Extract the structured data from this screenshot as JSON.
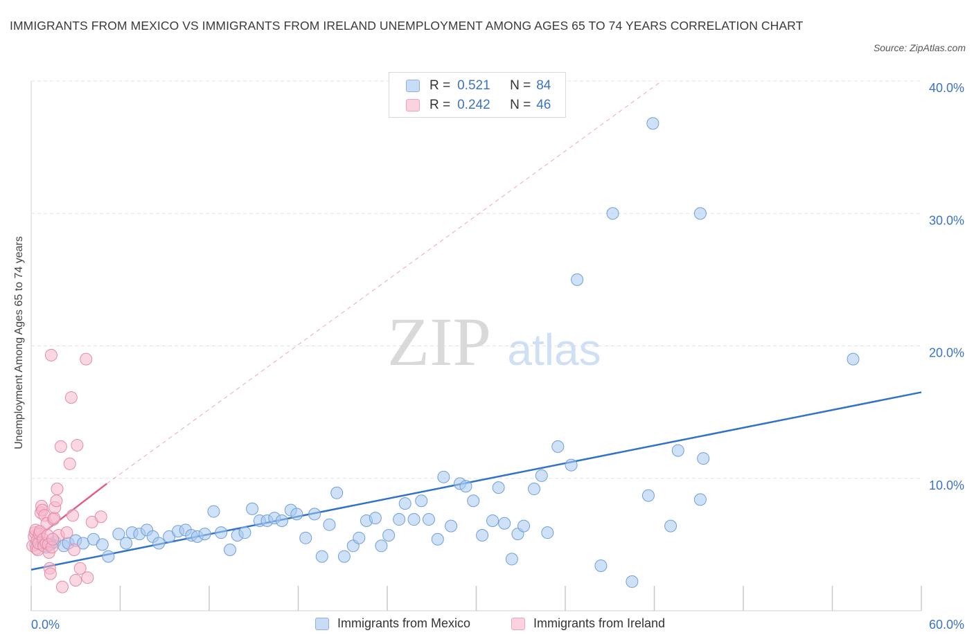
{
  "title": "IMMIGRANTS FROM MEXICO VS IMMIGRANTS FROM IRELAND UNEMPLOYMENT AMONG AGES 65 TO 74 YEARS CORRELATION CHART",
  "source": "Source: ZipAtlas.com",
  "watermark": {
    "zip": "ZIP",
    "atlas": "atlas"
  },
  "legend_stats": [
    {
      "r_label": "R =",
      "r_value": "0.521",
      "n_label": "N =",
      "n_value": "84",
      "color": "#a8c8f0"
    },
    {
      "r_label": "R =",
      "r_value": "0.242",
      "n_label": "N =",
      "n_value": "46",
      "color": "#f5b8cc"
    }
  ],
  "colors": {
    "mexico_fill": "#a8c8f0",
    "mexico_stroke": "#6f9fd8",
    "mexico_line": "#2f72c8",
    "ireland_fill": "#f5b8cc",
    "ireland_stroke": "#e58aa6",
    "ireland_line": "#e0608a",
    "axis_text": "#3a72c8",
    "grid": "#e3e3e3"
  },
  "chart_data": {
    "type": "scatter",
    "title": "IMMIGRANTS FROM MEXICO VS IMMIGRANTS FROM IRELAND UNEMPLOYMENT AMONG AGES 65 TO 74 YEARS CORRELATION CHART",
    "xlabel": "",
    "ylabel": "Unemployment Among Ages 65 to 74 years",
    "xlim": [
      0,
      60
    ],
    "ylim": [
      0,
      40
    ],
    "x_tick_labels": [
      {
        "value": 0,
        "label": "0.0%"
      },
      {
        "value": 60,
        "label": "60.0%"
      }
    ],
    "y_tick_labels": [
      {
        "value": 10,
        "label": "10.0%"
      },
      {
        "value": 20,
        "label": "20.0%"
      },
      {
        "value": 30,
        "label": "30.0%"
      },
      {
        "value": 40,
        "label": "40.0%"
      }
    ],
    "grid": true,
    "legend_position": "bottom",
    "series": [
      {
        "name": "Immigrants from Mexico",
        "color": "#a8c8f0",
        "points": [
          [
            0.3,
            5.0
          ],
          [
            0.5,
            5.3
          ],
          [
            0.7,
            5.0
          ],
          [
            1.0,
            4.8
          ],
          [
            1.3,
            5.0
          ],
          [
            1.6,
            5.2
          ],
          [
            2.2,
            4.9
          ],
          [
            2.5,
            5.1
          ],
          [
            3.0,
            5.3
          ],
          [
            3.5,
            5.1
          ],
          [
            4.2,
            5.4
          ],
          [
            4.8,
            5.0
          ],
          [
            5.2,
            4.1
          ],
          [
            5.9,
            5.8
          ],
          [
            6.4,
            5.1
          ],
          [
            6.8,
            5.9
          ],
          [
            7.3,
            5.8
          ],
          [
            7.8,
            6.1
          ],
          [
            8.2,
            5.6
          ],
          [
            8.6,
            5.1
          ],
          [
            9.3,
            5.6
          ],
          [
            9.9,
            6.0
          ],
          [
            10.4,
            6.1
          ],
          [
            10.8,
            5.7
          ],
          [
            11.2,
            5.6
          ],
          [
            11.7,
            5.8
          ],
          [
            12.3,
            7.5
          ],
          [
            12.8,
            5.9
          ],
          [
            13.4,
            4.6
          ],
          [
            13.9,
            5.7
          ],
          [
            14.4,
            5.9
          ],
          [
            14.9,
            7.7
          ],
          [
            15.4,
            6.8
          ],
          [
            15.9,
            6.8
          ],
          [
            16.4,
            7.0
          ],
          [
            16.9,
            6.8
          ],
          [
            17.5,
            7.6
          ],
          [
            17.9,
            7.3
          ],
          [
            18.5,
            5.5
          ],
          [
            19.1,
            7.3
          ],
          [
            19.6,
            4.1
          ],
          [
            20.1,
            6.5
          ],
          [
            20.6,
            8.9
          ],
          [
            21.1,
            4.1
          ],
          [
            21.7,
            4.9
          ],
          [
            22.1,
            5.5
          ],
          [
            22.6,
            6.8
          ],
          [
            23.2,
            7.0
          ],
          [
            23.6,
            4.9
          ],
          [
            24.1,
            5.7
          ],
          [
            24.8,
            6.9
          ],
          [
            25.2,
            8.1
          ],
          [
            25.8,
            6.9
          ],
          [
            26.3,
            8.3
          ],
          [
            26.8,
            6.9
          ],
          [
            27.4,
            5.4
          ],
          [
            27.8,
            10.1
          ],
          [
            28.3,
            6.4
          ],
          [
            28.9,
            9.6
          ],
          [
            29.3,
            9.4
          ],
          [
            29.8,
            8.3
          ],
          [
            30.4,
            5.7
          ],
          [
            31.1,
            6.8
          ],
          [
            31.5,
            9.3
          ],
          [
            31.9,
            6.6
          ],
          [
            32.4,
            3.9
          ],
          [
            32.8,
            5.8
          ],
          [
            33.2,
            6.4
          ],
          [
            33.9,
            9.2
          ],
          [
            34.4,
            10.2
          ],
          [
            34.8,
            5.9
          ],
          [
            35.5,
            12.4
          ],
          [
            36.4,
            11.0
          ],
          [
            36.8,
            25.0
          ],
          [
            38.4,
            3.4
          ],
          [
            39.2,
            30.0
          ],
          [
            41.9,
            36.8
          ],
          [
            40.5,
            2.2
          ],
          [
            41.6,
            8.7
          ],
          [
            43.1,
            6.4
          ],
          [
            43.6,
            12.1
          ],
          [
            45.1,
            30.0
          ],
          [
            45.3,
            11.5
          ],
          [
            55.4,
            19.0
          ],
          [
            45.1,
            8.4
          ]
        ],
        "trend_line": {
          "x": [
            0,
            60
          ],
          "y": [
            3.1,
            16.5
          ]
        }
      },
      {
        "name": "Immigrants from Ireland",
        "color": "#f5b8cc",
        "points": [
          [
            0.1,
            4.9
          ],
          [
            0.2,
            5.6
          ],
          [
            0.25,
            5.9
          ],
          [
            0.3,
            6.1
          ],
          [
            0.35,
            4.7
          ],
          [
            0.4,
            5.3
          ],
          [
            0.45,
            4.6
          ],
          [
            0.5,
            5.1
          ],
          [
            0.55,
            5.8
          ],
          [
            0.6,
            6.0
          ],
          [
            0.65,
            7.4
          ],
          [
            0.7,
            7.9
          ],
          [
            0.75,
            7.6
          ],
          [
            0.8,
            5.4
          ],
          [
            0.85,
            4.9
          ],
          [
            0.9,
            7.2
          ],
          [
            1.0,
            5.1
          ],
          [
            1.05,
            6.6
          ],
          [
            1.1,
            5.7
          ],
          [
            1.15,
            5.0
          ],
          [
            1.2,
            4.4
          ],
          [
            1.25,
            3.2
          ],
          [
            1.3,
            2.8
          ],
          [
            1.35,
            19.3
          ],
          [
            1.4,
            4.8
          ],
          [
            1.5,
            6.9
          ],
          [
            1.55,
            7.0
          ],
          [
            1.6,
            7.8
          ],
          [
            1.7,
            8.3
          ],
          [
            1.75,
            9.2
          ],
          [
            1.85,
            5.7
          ],
          [
            2.0,
            12.4
          ],
          [
            2.1,
            1.8
          ],
          [
            2.4,
            5.9
          ],
          [
            2.6,
            11.1
          ],
          [
            2.7,
            16.1
          ],
          [
            2.8,
            7.2
          ],
          [
            2.9,
            4.6
          ],
          [
            3.0,
            2.3
          ],
          [
            3.1,
            12.5
          ],
          [
            3.3,
            3.2
          ],
          [
            3.7,
            19.0
          ],
          [
            3.8,
            2.5
          ],
          [
            4.1,
            6.7
          ],
          [
            4.7,
            7.1
          ],
          [
            1.45,
            5.4
          ]
        ],
        "trend_line": {
          "x": [
            0,
            5.1
          ],
          "y": [
            5.2,
            9.6
          ]
        },
        "trend_line_extended": {
          "x": [
            5.1,
            42.5
          ],
          "y": [
            9.6,
            40.0
          ]
        }
      }
    ]
  }
}
